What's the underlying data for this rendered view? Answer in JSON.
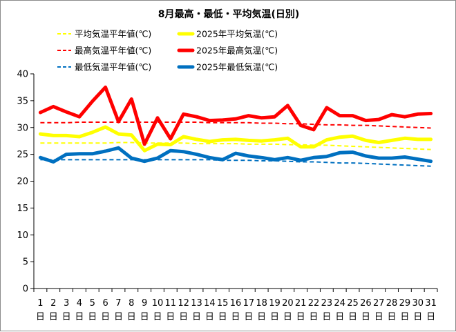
{
  "chart_data": {
    "type": "line",
    "title": "8月最高・最低・平均気温(日別)",
    "xlabel": "",
    "ylabel": "",
    "ylim": [
      0,
      40
    ],
    "yticks": [
      0,
      5,
      10,
      15,
      20,
      25,
      30,
      35,
      40
    ],
    "x_day_numbers": [
      "1",
      "2",
      "3",
      "4",
      "5",
      "6",
      "7",
      "8",
      "9",
      "10",
      "11",
      "12",
      "13",
      "14",
      "15",
      "16",
      "17",
      "18",
      "19",
      "20",
      "21",
      "22",
      "23",
      "24",
      "25",
      "26",
      "27",
      "28",
      "29",
      "30",
      "31"
    ],
    "x_day_suffix": "日",
    "grid": false,
    "legend_position": "top",
    "series": [
      {
        "name": "平均気温平年値(℃)",
        "color": "#FFFF00",
        "style": "dashed",
        "values": [
          27.1,
          27.1,
          27.1,
          27.1,
          27.1,
          27.1,
          27.2,
          27.2,
          27.1,
          27.1,
          27.1,
          27.1,
          27.0,
          27.0,
          27.0,
          27.0,
          26.9,
          26.9,
          26.9,
          26.8,
          26.8,
          26.7,
          26.7,
          26.6,
          26.5,
          26.4,
          26.3,
          26.2,
          26.1,
          26.0,
          25.9
        ]
      },
      {
        "name": "最高気温平年値(℃)",
        "color": "#FF0000",
        "style": "dashed",
        "values": [
          30.9,
          30.9,
          30.9,
          31.0,
          31.0,
          31.0,
          31.0,
          31.0,
          31.0,
          31.0,
          31.0,
          31.0,
          31.0,
          30.9,
          30.9,
          30.9,
          30.9,
          30.8,
          30.8,
          30.7,
          30.7,
          30.6,
          30.5,
          30.5,
          30.4,
          30.4,
          30.3,
          30.2,
          30.1,
          30.0,
          29.9
        ]
      },
      {
        "name": "最低気温平年値(℃)",
        "color": "#0070C0",
        "style": "dashed",
        "values": [
          24.0,
          24.0,
          24.0,
          24.0,
          24.0,
          24.0,
          24.0,
          24.0,
          24.0,
          24.0,
          24.0,
          24.0,
          24.0,
          24.0,
          23.9,
          23.9,
          23.9,
          23.8,
          23.8,
          23.7,
          23.6,
          23.6,
          23.5,
          23.4,
          23.4,
          23.3,
          23.2,
          23.1,
          23.0,
          22.9,
          22.8
        ]
      },
      {
        "name": "2025年平均気温(℃)",
        "color": "#FFFF00",
        "style": "solid",
        "values": [
          28.8,
          28.5,
          28.5,
          28.3,
          29.1,
          30.1,
          28.8,
          28.6,
          25.7,
          26.9,
          26.8,
          28.3,
          27.8,
          27.4,
          27.7,
          27.8,
          27.6,
          27.5,
          27.7,
          28.0,
          26.4,
          26.4,
          27.7,
          28.2,
          28.4,
          27.6,
          27.2,
          27.6,
          28.0,
          27.8,
          27.8
        ]
      },
      {
        "name": "2025年最高気温(℃)",
        "color": "#FF0000",
        "style": "solid",
        "values": [
          32.8,
          33.9,
          32.9,
          32.0,
          34.9,
          37.5,
          31.1,
          35.3,
          26.9,
          31.8,
          27.9,
          32.5,
          32.0,
          31.3,
          31.4,
          31.6,
          32.2,
          31.8,
          32.0,
          34.1,
          30.4,
          29.6,
          33.7,
          32.2,
          32.2,
          31.3,
          31.5,
          32.4,
          32.0,
          32.5,
          32.6
        ]
      },
      {
        "name": "2025年最低気温(℃)",
        "color": "#0070C0",
        "style": "solid",
        "values": [
          24.4,
          23.6,
          25.0,
          25.1,
          25.1,
          25.6,
          26.2,
          24.3,
          23.7,
          24.3,
          25.7,
          25.5,
          25.0,
          24.4,
          24.0,
          25.2,
          24.7,
          24.4,
          24.0,
          24.4,
          23.9,
          24.4,
          24.6,
          25.3,
          25.4,
          24.7,
          24.3,
          24.3,
          24.5,
          24.1,
          23.7
        ]
      }
    ]
  }
}
